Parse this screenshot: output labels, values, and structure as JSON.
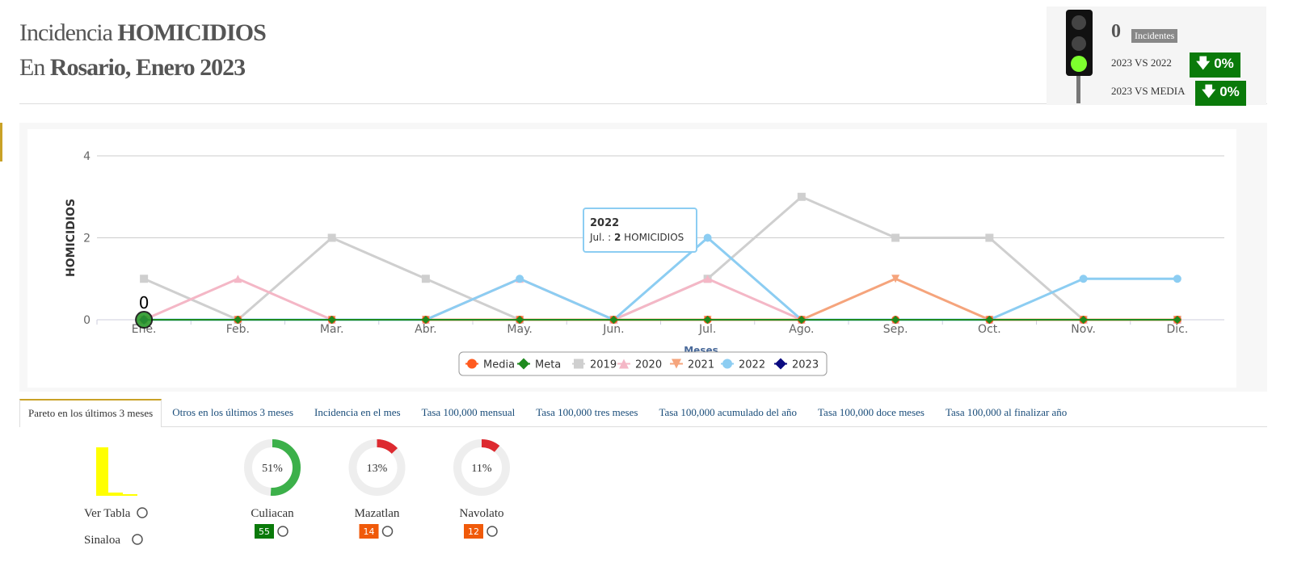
{
  "header": {
    "title_prefix": "Incidencia ",
    "title_strong": "HOMICIDIOS",
    "subtitle_prefix": "En ",
    "subtitle_strong": "Rosario, Enero 2023"
  },
  "indicator": {
    "count": "0",
    "count_label": "Incidentes",
    "rows": [
      {
        "label": "2023 VS 2022",
        "value": "0%"
      },
      {
        "label": "2023 VS MEDIA",
        "value": "0%"
      }
    ]
  },
  "chart": {
    "type": "line",
    "y_label": "HOMICIDIOS",
    "x_label": "Meses",
    "categories": [
      "Ene.",
      "Feb.",
      "Mar.",
      "Abr.",
      "May.",
      "Jun.",
      "Jul.",
      "Ago.",
      "Sep.",
      "Oct.",
      "Nov.",
      "Dic."
    ],
    "ylim": [
      0,
      4
    ],
    "yticks": [
      0,
      2,
      4
    ],
    "grid": true,
    "series": [
      {
        "name": "Media",
        "color": "#ff5a1f",
        "marker": "circle",
        "values": [
          0,
          0,
          0,
          0,
          0,
          0,
          0,
          0,
          0,
          0,
          0,
          0
        ]
      },
      {
        "name": "Meta",
        "color": "#1e8a1e",
        "marker": "diamond",
        "values": [
          0,
          0,
          0,
          0,
          0,
          0,
          0,
          0,
          0,
          0,
          0,
          0
        ]
      },
      {
        "name": "2019",
        "color": "#cfcfcf",
        "marker": "square",
        "values": [
          1,
          0,
          2,
          1,
          0,
          0,
          1,
          3,
          2,
          2,
          0,
          0
        ]
      },
      {
        "name": "2020",
        "color": "#f4b7c6",
        "marker": "triangle",
        "values": [
          0,
          1,
          0,
          0,
          1,
          0,
          1,
          0,
          0,
          0,
          0,
          0
        ]
      },
      {
        "name": "2021",
        "color": "#f5a47c",
        "marker": "triangle-down",
        "values": [
          0,
          0,
          0,
          0,
          0,
          0,
          0,
          0,
          1,
          0,
          0,
          0
        ]
      },
      {
        "name": "2022",
        "color": "#8ccdf2",
        "marker": "circle",
        "values": [
          0,
          0,
          0,
          0,
          1,
          0,
          2,
          0,
          0,
          0,
          1,
          1
        ]
      },
      {
        "name": "2023",
        "color": "#0a0a80",
        "marker": "diamond",
        "values": [
          0,
          null,
          null,
          null,
          null,
          null,
          null,
          null,
          null,
          null,
          null,
          null
        ]
      }
    ],
    "tooltip": {
      "title": "2022",
      "category": "Jul. : ",
      "value": "2",
      "unit": " HOMICIDIOS"
    }
  },
  "tabs": [
    "Pareto en los últimos 3 meses",
    "Otros en los últimos 3 meses",
    "Incidencia en el mes",
    "Tasa 100,000 mensual",
    "Tasa 100,000 tres meses",
    "Tasa 100,000 acumulado del año",
    "Tasa 100,000 doce meses",
    "Tasa 100,000 al finalizar año"
  ],
  "links": [
    "Ver Tabla",
    "Sinaloa"
  ],
  "donuts": [
    {
      "name": "Culiacan",
      "value": 51,
      "label": "51%",
      "color": "#3cb04a",
      "count": "55",
      "count_color": "#0a7a0a"
    },
    {
      "name": "Mazatlan",
      "value": 13,
      "label": "13%",
      "color": "#dd2a30",
      "count": "14",
      "count_color": "#f05a0a"
    },
    {
      "name": "Navolato",
      "value": 11,
      "label": "11%",
      "color": "#dd2a30",
      "count": "12",
      "count_color": "#f05a0a"
    }
  ]
}
